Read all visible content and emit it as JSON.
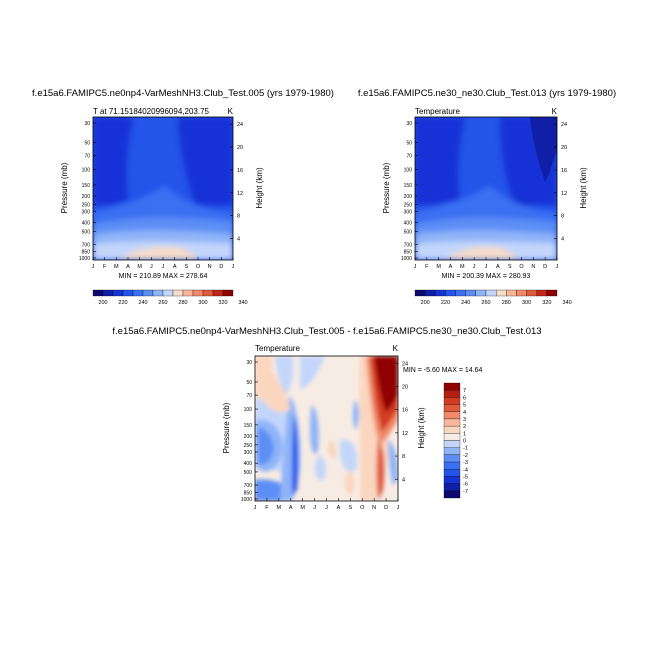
{
  "colors": {
    "levels_abs": [
      "#0a0a6e",
      "#0f1fa8",
      "#1632d6",
      "#2454ea",
      "#3a70f2",
      "#5c8ef5",
      "#8fb4f8",
      "#c3d6fa",
      "#f5dcc8",
      "#f8b79a",
      "#f08a68",
      "#e05a3c",
      "#c22818",
      "#900000"
    ],
    "levels_diff": [
      "#0a0a6e",
      "#0f1fa8",
      "#1632d6",
      "#2454ea",
      "#3a70f2",
      "#5c8ef5",
      "#8fb4f8",
      "#c3d6fa",
      "#f7ece4",
      "#fbd6bf",
      "#f8b79a",
      "#f08a68",
      "#e05a3c",
      "#d33a22",
      "#b71e12",
      "#900000"
    ]
  },
  "chart_data": [
    {
      "type": "heatmap",
      "title": "f.e15a6.FAMIPC5.ne0np4-VarMeshNH3.Club_Test.005 (yrs 1979-1980)",
      "left_label": "T at 71.15184020996094,203.75",
      "right_label": "K",
      "ylabel": "Pressure (mb)",
      "ylabel_right": "Height (km)",
      "categories": [
        "J",
        "F",
        "M",
        "A",
        "M",
        "J",
        "J",
        "A",
        "S",
        "O",
        "N",
        "D",
        "J"
      ],
      "pressure_ticks": [
        "30",
        "50",
        "70",
        "100",
        "150",
        "200",
        "250",
        "300",
        "400",
        "500",
        "700",
        "850",
        "1000"
      ],
      "height_ticks": [
        "24",
        "20",
        "16",
        "12",
        "8",
        "4"
      ],
      "stats": "MIN = 210.89   MAX = 278.64",
      "colorbar_labels": [
        "200",
        "220",
        "240",
        "260",
        "280",
        "300",
        "320",
        "340"
      ],
      "min": 210.89,
      "max": 278.64
    },
    {
      "type": "heatmap",
      "title": "f.e15a6.FAMIPC5.ne30_ne30.Club_Test.013 (yrs 1979-1980)",
      "left_label": "Temperature",
      "right_label": "K",
      "ylabel": "Pressure (mb)",
      "ylabel_right": "Height (km)",
      "categories": [
        "J",
        "F",
        "M",
        "A",
        "M",
        "J",
        "J",
        "A",
        "S",
        "O",
        "N",
        "D",
        "J"
      ],
      "pressure_ticks": [
        "30",
        "50",
        "70",
        "100",
        "150",
        "200",
        "250",
        "300",
        "400",
        "500",
        "700",
        "850",
        "1000"
      ],
      "height_ticks": [
        "24",
        "20",
        "16",
        "12",
        "8",
        "4"
      ],
      "stats": "MIN = 200.39   MAX = 280.93",
      "colorbar_labels": [
        "200",
        "220",
        "240",
        "260",
        "280",
        "300",
        "320",
        "340"
      ],
      "min": 200.39,
      "max": 280.93
    },
    {
      "type": "heatmap",
      "title": "f.e15a6.FAMIPC5.ne0np4-VarMeshNH3.Club_Test.005 - f.e15a6.FAMIPC5.ne30_ne30.Club_Test.013",
      "left_label": "Temperature",
      "right_label": "K",
      "ylabel": "Pressure (mb)",
      "ylabel_right": "Height (km)",
      "categories": [
        "J",
        "F",
        "M",
        "A",
        "M",
        "J",
        "J",
        "A",
        "S",
        "O",
        "N",
        "D",
        "J"
      ],
      "pressure_ticks": [
        "30",
        "50",
        "70",
        "100",
        "150",
        "200",
        "250",
        "300",
        "400",
        "500",
        "700",
        "850",
        "1000"
      ],
      "height_ticks": [
        "24",
        "20",
        "16",
        "12",
        "8",
        "4"
      ],
      "stats": "MIN =  -5.60   MAX =  14.64",
      "colorbar_labels": [
        "7",
        "6",
        "5",
        "4",
        "3",
        "2",
        "1",
        "0",
        "-1",
        "-2",
        "-3",
        "-4",
        "-5",
        "-6",
        "-7"
      ],
      "min": -5.6,
      "max": 14.64
    }
  ]
}
